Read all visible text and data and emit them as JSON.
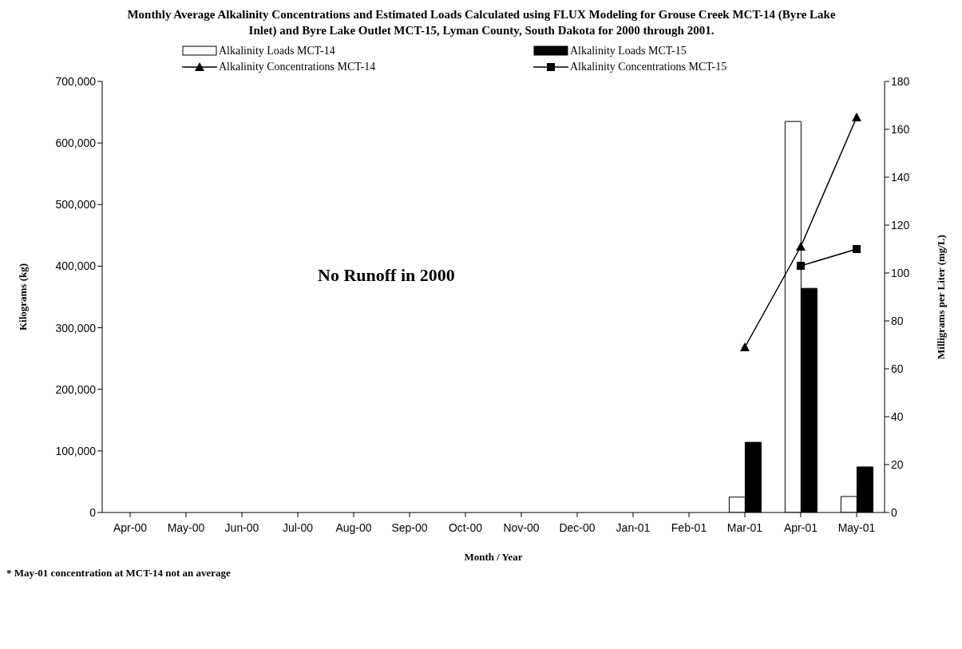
{
  "chart_data": {
    "type": "bar",
    "title": "Monthly Average Alkalinity Concentrations and Estimated Loads Calculated using FLUX Modeling for Grouse Creek MCT-14 (Byre Lake Inlet) and Byre Lake Outlet MCT-15, Lyman County, South Dakota for 2000 through 2001.",
    "xlabel": "Month / Year",
    "ylabel": "Kilograms (kg)",
    "y2label": "Milligrams per Liter (mg/L)",
    "categories": [
      "Apr-00",
      "May-00",
      "Jun-00",
      "Jul-00",
      "Aug-00",
      "Sep-00",
      "Oct-00",
      "Nov-00",
      "Dec-00",
      "Jan-01",
      "Feb-01",
      "Mar-01",
      "Apr-01",
      "May-01"
    ],
    "series": [
      {
        "name": "Alkalinity Loads MCT-14",
        "color": "#ffffff",
        "values": [
          null,
          null,
          null,
          null,
          null,
          null,
          null,
          null,
          null,
          null,
          null,
          25000,
          635000,
          26000
        ]
      },
      {
        "name": "Alkalinity Loads MCT-15",
        "color": "#000000",
        "values": [
          null,
          null,
          null,
          null,
          null,
          null,
          null,
          null,
          null,
          null,
          null,
          114000,
          364000,
          74000
        ]
      },
      {
        "name": "Alkalinity Concentrations MCT-14",
        "type": "line",
        "axis": "y2",
        "marker": "triangle",
        "color": "#000000",
        "values": [
          null,
          null,
          null,
          null,
          null,
          null,
          null,
          null,
          null,
          null,
          null,
          69,
          111,
          165
        ]
      },
      {
        "name": "Alkalinity Concentrations MCT-15",
        "type": "line",
        "axis": "y2",
        "marker": "square",
        "color": "#000000",
        "values": [
          null,
          null,
          null,
          null,
          null,
          null,
          null,
          null,
          null,
          null,
          null,
          null,
          103,
          110
        ]
      }
    ],
    "ylim": [
      0,
      700000
    ],
    "yticks": [
      {
        "value": 0,
        "label": "0"
      },
      {
        "value": 100000,
        "label": "100,000"
      },
      {
        "value": 200000,
        "label": "200,000"
      },
      {
        "value": 300000,
        "label": "300,000"
      },
      {
        "value": 400000,
        "label": "400,000"
      },
      {
        "value": 500000,
        "label": "500,000"
      },
      {
        "value": 600000,
        "label": "600,000"
      },
      {
        "value": 700000,
        "label": "700,000"
      }
    ],
    "y2lim": [
      0,
      180
    ],
    "y2ticks": [
      0,
      20,
      40,
      60,
      80,
      100,
      120,
      140,
      160,
      180
    ],
    "annotations": [
      "No Runoff in 2000",
      "* May-01 concentration at MCT-14 not an average"
    ],
    "legend": "top",
    "grid": false
  }
}
